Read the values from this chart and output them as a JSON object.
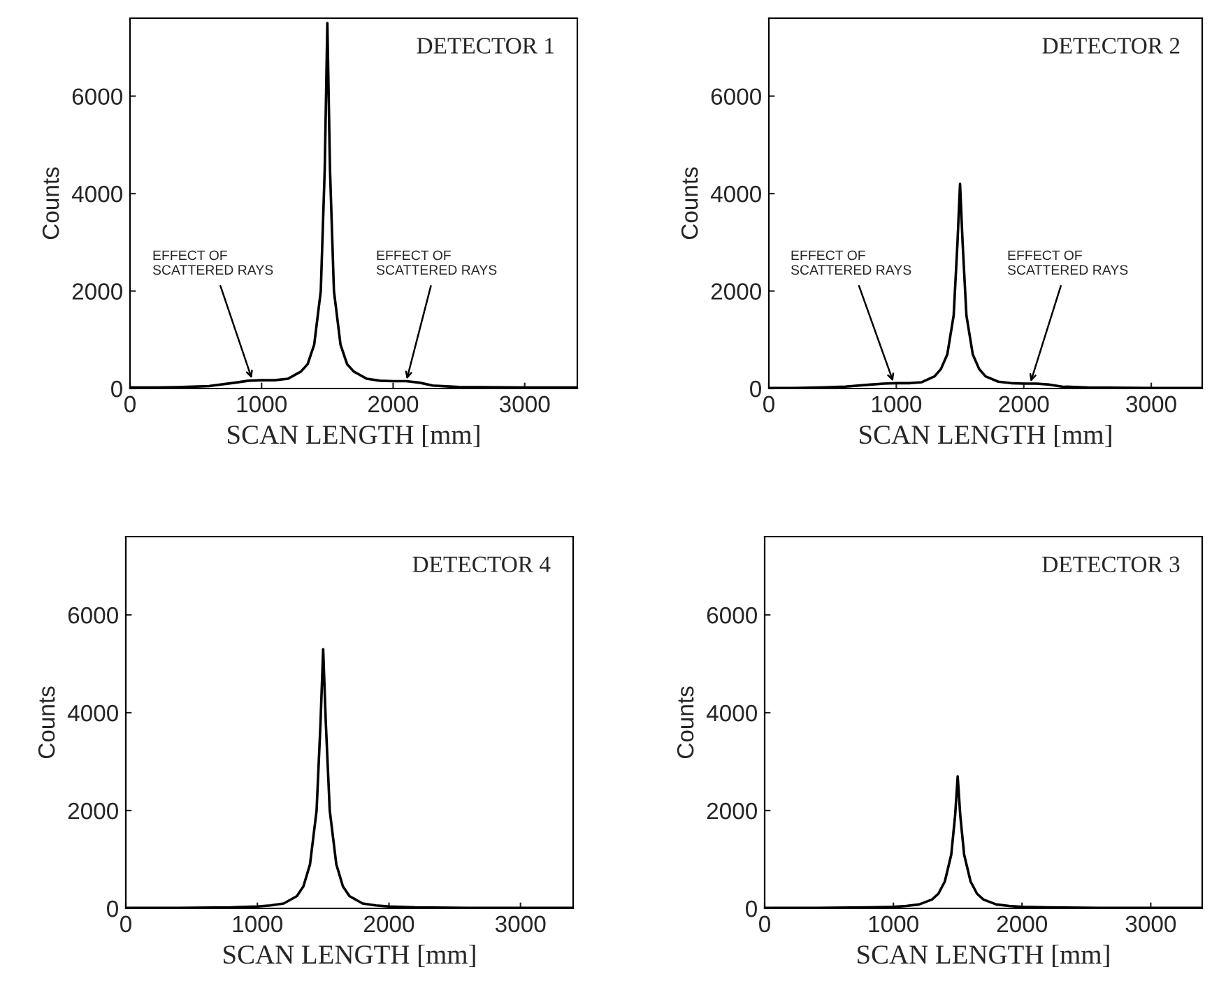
{
  "chart_data": [
    {
      "type": "line",
      "title": "DETECTOR 1",
      "xlabel": "SCAN LENGTH [mm]",
      "ylabel": "Counts",
      "xlim": [
        0,
        3400
      ],
      "ylim": [
        0,
        7600
      ],
      "xticks": [
        0,
        1000,
        2000,
        3000
      ],
      "yticks": [
        0,
        2000,
        4000,
        6000
      ],
      "grid": false,
      "marker": "none",
      "line_style": "solid",
      "x": [
        0,
        200,
        400,
        600,
        800,
        900,
        1000,
        1100,
        1200,
        1300,
        1350,
        1400,
        1450,
        1480,
        1500,
        1520,
        1550,
        1600,
        1650,
        1700,
        1800,
        1900,
        2000,
        2100,
        2200,
        2300,
        2500,
        3000,
        3400
      ],
      "series": [
        {
          "color": "#000000",
          "values": [
            20,
            20,
            30,
            50,
            120,
            160,
            170,
            170,
            200,
            350,
            500,
            900,
            2000,
            4500,
            7500,
            4500,
            2000,
            900,
            500,
            350,
            200,
            160,
            150,
            150,
            120,
            60,
            30,
            20,
            20
          ]
        }
      ],
      "annotations": [
        {
          "text": "EFFECT OF\nSCATTERED RAYS",
          "x": 930,
          "y": 170
        },
        {
          "text": "EFFECT OF\nSCATTERED RAYS",
          "x": 2100,
          "y": 150
        }
      ]
    },
    {
      "type": "line",
      "title": "DETECTOR 2",
      "xlabel": "SCAN LENGTH [mm]",
      "ylabel": "Counts",
      "xlim": [
        0,
        3400
      ],
      "ylim": [
        0,
        7600
      ],
      "xticks": [
        0,
        1000,
        2000,
        3000
      ],
      "yticks": [
        0,
        2000,
        4000,
        6000
      ],
      "grid": false,
      "marker": "none",
      "line_style": "solid",
      "x": [
        0,
        200,
        400,
        600,
        800,
        900,
        1000,
        1100,
        1200,
        1300,
        1350,
        1400,
        1450,
        1480,
        1500,
        1520,
        1550,
        1600,
        1650,
        1700,
        1800,
        1900,
        2000,
        2100,
        2200,
        2300,
        2500,
        3000,
        3400
      ],
      "series": [
        {
          "color": "#000000",
          "values": [
            10,
            10,
            20,
            40,
            80,
            100,
            110,
            110,
            130,
            250,
            400,
            700,
            1500,
            3000,
            4200,
            3000,
            1500,
            700,
            400,
            250,
            140,
            110,
            100,
            100,
            80,
            40,
            20,
            10,
            10
          ]
        }
      ],
      "annotations": [
        {
          "text": "EFFECT OF\nSCATTERED RAYS",
          "x": 980,
          "y": 110
        },
        {
          "text": "EFFECT OF\nSCATTERED RAYS",
          "x": 2050,
          "y": 100
        }
      ]
    },
    {
      "type": "line",
      "title": "DETECTOR 4",
      "xlabel": "SCAN LENGTH [mm]",
      "ylabel": "Counts",
      "xlim": [
        0,
        3400
      ],
      "ylim": [
        0,
        7600
      ],
      "xticks": [
        0,
        1000,
        2000,
        3000
      ],
      "yticks": [
        0,
        2000,
        4000,
        6000
      ],
      "grid": false,
      "marker": "none",
      "line_style": "solid",
      "x": [
        0,
        400,
        800,
        1000,
        1100,
        1200,
        1300,
        1350,
        1400,
        1450,
        1480,
        1500,
        1520,
        1550,
        1600,
        1650,
        1700,
        1800,
        1900,
        2000,
        2200,
        2600,
        3000,
        3400
      ],
      "series": [
        {
          "color": "#000000",
          "values": [
            10,
            10,
            20,
            40,
            60,
            100,
            250,
            450,
            900,
            2000,
            3800,
            5300,
            3800,
            2000,
            900,
            450,
            250,
            100,
            60,
            40,
            20,
            10,
            10,
            10
          ]
        }
      ]
    },
    {
      "type": "line",
      "title": "DETECTOR 3",
      "xlabel": "SCAN LENGTH [mm]",
      "ylabel": "Counts",
      "xlim": [
        0,
        3400
      ],
      "ylim": [
        0,
        7600
      ],
      "xticks": [
        0,
        1000,
        2000,
        3000
      ],
      "yticks": [
        0,
        2000,
        4000,
        6000
      ],
      "grid": false,
      "marker": "none",
      "line_style": "solid",
      "x": [
        0,
        400,
        800,
        1000,
        1100,
        1200,
        1300,
        1350,
        1400,
        1450,
        1480,
        1500,
        1520,
        1550,
        1600,
        1650,
        1700,
        1800,
        1900,
        2000,
        2200,
        2600,
        3000,
        3400
      ],
      "series": [
        {
          "color": "#000000",
          "values": [
            10,
            10,
            20,
            30,
            50,
            80,
            180,
            300,
            550,
            1100,
            1900,
            2700,
            1900,
            1100,
            550,
            300,
            180,
            80,
            50,
            30,
            20,
            10,
            10,
            10
          ]
        }
      ]
    }
  ]
}
